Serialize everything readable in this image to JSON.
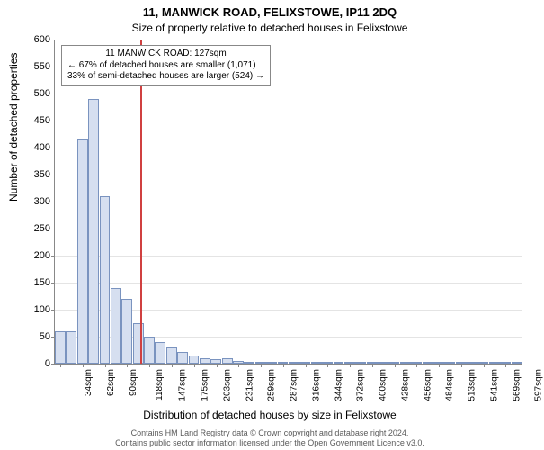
{
  "title_line1": "11, MANWICK ROAD, FELIXSTOWE, IP11 2DQ",
  "title_line2": "Size of property relative to detached houses in Felixstowe",
  "ylabel": "Number of detached properties",
  "xlabel": "Distribution of detached houses by size in Felixstowe",
  "footer_line1": "Contains HM Land Registry data © Crown copyright and database right 2024.",
  "footer_line2": "Contains public sector information licensed under the Open Government Licence v3.0.",
  "annotation": {
    "line1": "11 MANWICK ROAD: 127sqm",
    "line2": "← 67% of detached houses are smaller (1,071)",
    "line3": "33% of semi-detached houses are larger (524) →"
  },
  "chart": {
    "type": "histogram",
    "background_color": "#ffffff",
    "grid_color": "#e4e4e4",
    "axis_color": "#888888",
    "bar_fill": "#d6dff0",
    "bar_border": "#7a93bf",
    "refline_color": "#d04040",
    "refline_width": 2,
    "ylim": [
      0,
      600
    ],
    "ytick_step": 50,
    "xtick_interval": 28,
    "bin_width_sqm": 14,
    "bin_start_sqm": 20,
    "ref_value_sqm": 127,
    "categories": [
      "34sqm",
      "62sqm",
      "90sqm",
      "118sqm",
      "147sqm",
      "175sqm",
      "203sqm",
      "231sqm",
      "259sqm",
      "287sqm",
      "316sqm",
      "344sqm",
      "372sqm",
      "400sqm",
      "428sqm",
      "456sqm",
      "484sqm",
      "513sqm",
      "541sqm",
      "569sqm",
      "597sqm"
    ],
    "values": [
      60,
      60,
      415,
      490,
      310,
      140,
      120,
      75,
      50,
      40,
      30,
      22,
      15,
      10,
      8,
      10,
      5,
      3,
      3,
      2,
      2,
      2,
      2,
      2,
      2,
      2,
      2,
      2,
      2,
      2,
      2,
      2,
      2,
      2,
      2,
      2,
      2,
      2,
      2,
      2,
      2,
      2
    ]
  },
  "label_fontsize": 12,
  "tick_fontsize": 11,
  "title_fontsize": 13
}
